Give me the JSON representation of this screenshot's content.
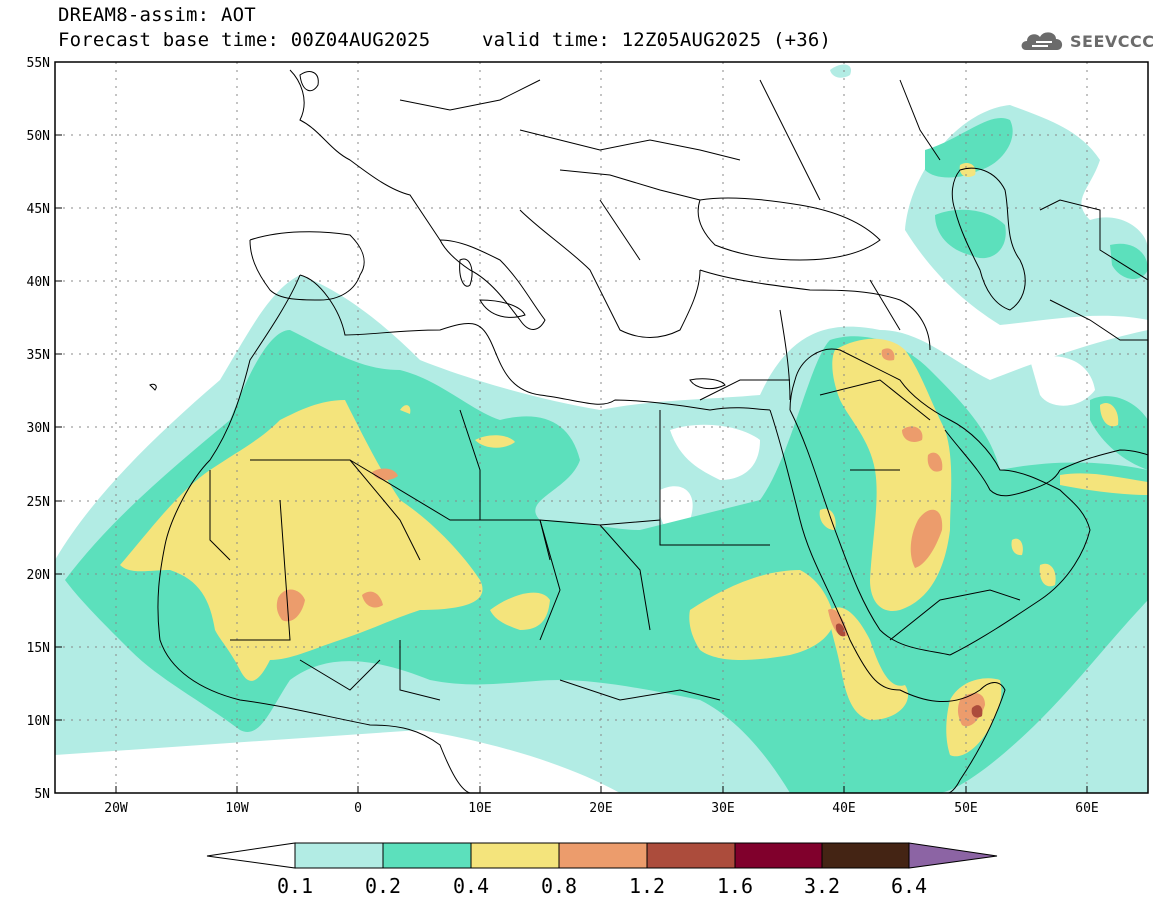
{
  "title": {
    "line1": "DREAM8-assim: AOT",
    "base_time": "Forecast base time: 00Z04AUG2025",
    "valid_time": "valid time: 12Z05AUG2025 (+36)"
  },
  "logo": {
    "text": "SEEVCCC",
    "icon": "cloud-logo-icon"
  },
  "axes": {
    "lat_labels": [
      "55N",
      "50N",
      "45N",
      "40N",
      "35N",
      "30N",
      "25N",
      "20N",
      "15N",
      "10N",
      "5N"
    ],
    "lon_labels": [
      "20W",
      "10W",
      "0",
      "10E",
      "20E",
      "30E",
      "40E",
      "50E",
      "60E"
    ],
    "lon_range": [
      -25,
      65
    ],
    "lat_range": [
      5,
      55
    ]
  },
  "legend": {
    "labels": [
      "0.1",
      "0.2",
      "0.4",
      "0.8",
      "1.2",
      "1.6",
      "3.2",
      "6.4"
    ],
    "colors": [
      "#ffffff",
      "#b2ece4",
      "#5ce0bc",
      "#f4e47c",
      "#ec9c6c",
      "#ac4c3c",
      "#80002c",
      "#442414",
      "#8c64a4"
    ]
  },
  "colors": {
    "land_border": "#000000",
    "grid": "#888888",
    "background": "#ffffff"
  }
}
